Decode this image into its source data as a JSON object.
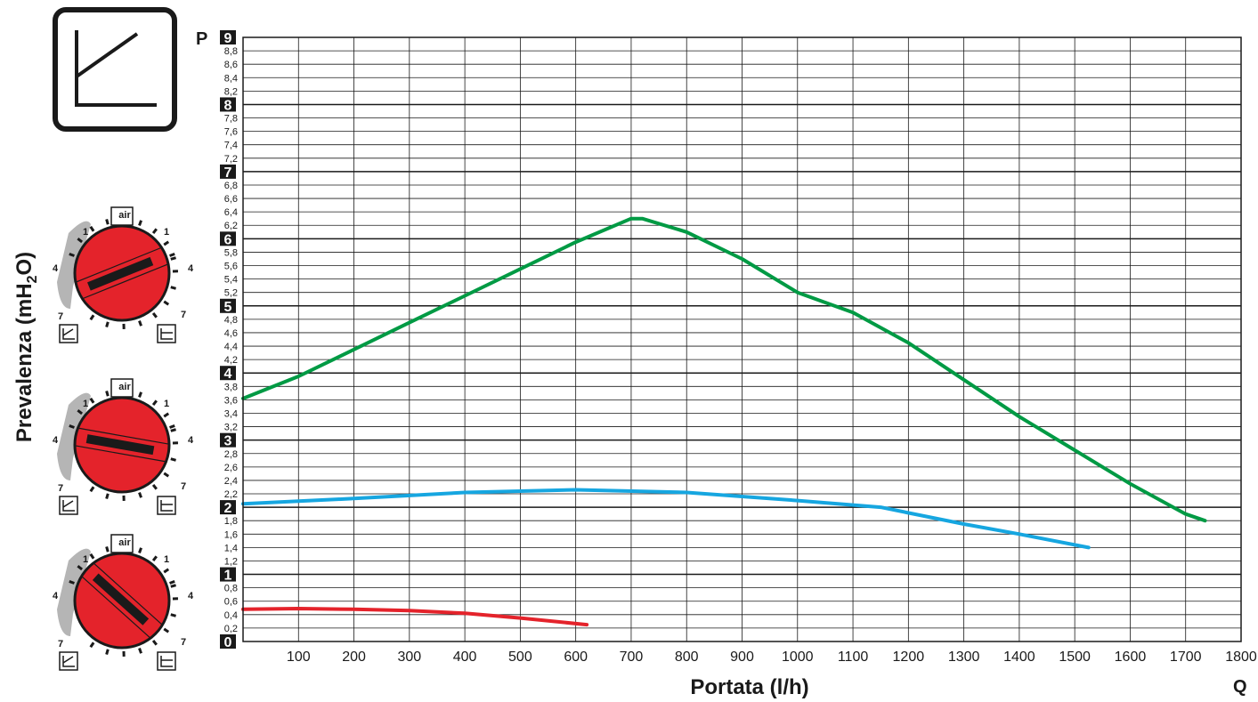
{
  "chart_data": {
    "type": "line",
    "xlabel": "Portata (l/h)",
    "ylabel": "Prevalenza (mH2O)",
    "ylabel_main": "Prevalenza (mH",
    "ylabel_sub": "2",
    "ylabel_end": "O)",
    "x_axis_symbol": "Q",
    "y_axis_symbol": "P",
    "xlim": [
      0,
      1800
    ],
    "ylim": [
      0,
      9
    ],
    "grid": true,
    "x_ticks": [
      "100",
      "200",
      "300",
      "400",
      "500",
      "600",
      "700",
      "800",
      "900",
      "1000",
      "1100",
      "1200",
      "1300",
      "1400",
      "1500",
      "1600",
      "1700",
      "1800"
    ],
    "y_major_ticks": [
      "0",
      "1",
      "2",
      "3",
      "4",
      "5",
      "6",
      "7",
      "8",
      "9"
    ],
    "y_minor_ticks": [
      "0,2",
      "0,4",
      "0,6",
      "0,8",
      "1,2",
      "1,4",
      "1,6",
      "1,8",
      "2,2",
      "2,4",
      "2,6",
      "2,8",
      "3,2",
      "3,4",
      "3,6",
      "3,8",
      "4,2",
      "4,4",
      "4,6",
      "4,8",
      "5,2",
      "5,4",
      "5,6",
      "5,8",
      "6,2",
      "6,4",
      "6,6",
      "6,8",
      "7,2",
      "7,4",
      "7,6",
      "7,8",
      "8,2",
      "8,4",
      "8,6",
      "8,8"
    ],
    "series": [
      {
        "color": "#009a44",
        "x": [
          0,
          100,
          200,
          300,
          400,
          500,
          600,
          700,
          720,
          800,
          900,
          1000,
          1100,
          1200,
          1300,
          1400,
          1500,
          1600,
          1700,
          1735
        ],
        "y": [
          3.62,
          3.95,
          4.35,
          4.75,
          5.15,
          5.55,
          5.95,
          6.3,
          6.3,
          6.1,
          5.7,
          5.2,
          4.9,
          4.45,
          3.9,
          3.35,
          2.85,
          2.35,
          1.9,
          1.8
        ]
      },
      {
        "color": "#16a6e0",
        "x": [
          0,
          200,
          400,
          600,
          800,
          1000,
          1150,
          1300,
          1400,
          1525
        ],
        "y": [
          2.05,
          2.13,
          2.22,
          2.26,
          2.22,
          2.1,
          2.0,
          1.75,
          1.6,
          1.4
        ]
      },
      {
        "color": "#e4232b",
        "x": [
          0,
          100,
          200,
          300,
          400,
          500,
          620
        ],
        "y": [
          0.48,
          0.49,
          0.48,
          0.46,
          0.42,
          0.35,
          0.25
        ]
      }
    ],
    "dial_labels": {
      "air": "air",
      "one": "1",
      "four": "4",
      "seven": "7"
    }
  }
}
